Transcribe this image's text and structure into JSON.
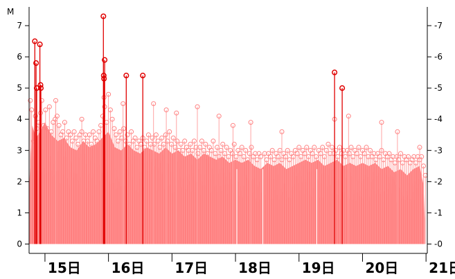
{
  "chart_data": {
    "type": "bar",
    "title": "",
    "y_unit_label": "M",
    "ylim": [
      -0.3,
      7.6
    ],
    "y_ticks": [
      0,
      1,
      2,
      3,
      4,
      5,
      6,
      7
    ],
    "y_tick_labels": [
      "0",
      "1",
      "2",
      "3",
      "4",
      "5",
      "6",
      "7"
    ],
    "xlim": [
      14.75,
      21.02
    ],
    "x_ticks": [
      {
        "value": 15,
        "label": "15日"
      },
      {
        "value": 16,
        "label": "16日"
      },
      {
        "value": 17,
        "label": "17日"
      },
      {
        "value": 18,
        "label": "18日"
      },
      {
        "value": 19,
        "label": "19日"
      },
      {
        "value": 20,
        "label": "20日"
      },
      {
        "value": 21,
        "label": "21日"
      }
    ],
    "colors": {
      "bulk_fill": "#ff8080",
      "minor_stem": "#ff9a9a",
      "minor_marker": "#ff8080",
      "major_stem": "#e00000",
      "major_marker": "#e00000"
    },
    "bulk_envelope": [
      [
        14.75,
        1.8
      ],
      [
        14.8,
        3.8
      ],
      [
        14.86,
        3.4
      ],
      [
        14.92,
        3.6
      ],
      [
        15.0,
        3.9
      ],
      [
        15.1,
        3.5
      ],
      [
        15.2,
        3.3
      ],
      [
        15.3,
        3.4
      ],
      [
        15.4,
        3.1
      ],
      [
        15.5,
        3.0
      ],
      [
        15.6,
        3.3
      ],
      [
        15.7,
        3.1
      ],
      [
        15.8,
        3.2
      ],
      [
        15.9,
        3.4
      ],
      [
        16.0,
        3.6
      ],
      [
        16.1,
        3.1
      ],
      [
        16.2,
        3.0
      ],
      [
        16.3,
        3.2
      ],
      [
        16.4,
        3.0
      ],
      [
        16.5,
        2.9
      ],
      [
        16.6,
        3.1
      ],
      [
        16.7,
        3.0
      ],
      [
        16.8,
        2.9
      ],
      [
        16.9,
        3.1
      ],
      [
        17.0,
        2.9
      ],
      [
        17.1,
        3.0
      ],
      [
        17.2,
        2.8
      ],
      [
        17.3,
        2.9
      ],
      [
        17.4,
        2.7
      ],
      [
        17.5,
        2.9
      ],
      [
        17.6,
        2.8
      ],
      [
        17.7,
        2.7
      ],
      [
        17.8,
        2.8
      ],
      [
        17.9,
        2.6
      ],
      [
        18.0,
        2.7
      ],
      [
        18.1,
        2.6
      ],
      [
        18.2,
        2.7
      ],
      [
        18.3,
        2.5
      ],
      [
        18.4,
        2.4
      ],
      [
        18.5,
        2.6
      ],
      [
        18.6,
        2.5
      ],
      [
        18.7,
        2.6
      ],
      [
        18.8,
        2.4
      ],
      [
        18.9,
        2.5
      ],
      [
        19.0,
        2.6
      ],
      [
        19.1,
        2.7
      ],
      [
        19.2,
        2.6
      ],
      [
        19.3,
        2.7
      ],
      [
        19.4,
        2.5
      ],
      [
        19.5,
        2.6
      ],
      [
        19.6,
        2.7
      ],
      [
        19.7,
        2.5
      ],
      [
        19.8,
        2.6
      ],
      [
        19.9,
        2.5
      ],
      [
        20.0,
        2.6
      ],
      [
        20.1,
        2.5
      ],
      [
        20.2,
        2.6
      ],
      [
        20.3,
        2.4
      ],
      [
        20.4,
        2.5
      ],
      [
        20.5,
        2.3
      ],
      [
        20.6,
        2.4
      ],
      [
        20.7,
        2.2
      ],
      [
        20.8,
        2.4
      ],
      [
        20.9,
        2.5
      ],
      [
        20.96,
        1.9
      ],
      [
        20.98,
        0.8
      ]
    ],
    "bulk_gaps": [
      18.02,
      18.43,
      19.28
    ],
    "minor_events": [
      [
        14.77,
        4.6
      ],
      [
        14.79,
        4.3
      ],
      [
        14.82,
        3.3
      ],
      [
        14.85,
        4.1
      ],
      [
        14.87,
        3.7
      ],
      [
        14.9,
        3.9
      ],
      [
        14.93,
        4.2
      ],
      [
        14.95,
        4.6
      ],
      [
        14.98,
        3.8
      ],
      [
        15.01,
        4.3
      ],
      [
        15.04,
        3.7
      ],
      [
        15.07,
        4.4
      ],
      [
        15.1,
        3.6
      ],
      [
        15.13,
        3.9
      ],
      [
        15.16,
        4.0
      ],
      [
        15.19,
        4.1
      ],
      [
        15.22,
        3.8
      ],
      [
        15.25,
        3.5
      ],
      [
        15.28,
        3.6
      ],
      [
        15.31,
        3.9
      ],
      [
        15.34,
        3.4
      ],
      [
        15.37,
        3.6
      ],
      [
        15.4,
        3.5
      ],
      [
        15.43,
        3.3
      ],
      [
        15.46,
        3.6
      ],
      [
        15.49,
        3.4
      ],
      [
        15.52,
        3.2
      ],
      [
        15.55,
        3.5
      ],
      [
        15.58,
        3.6
      ],
      [
        15.61,
        3.3
      ],
      [
        15.64,
        3.5
      ],
      [
        15.67,
        3.3
      ],
      [
        15.7,
        3.5
      ],
      [
        15.73,
        3.2
      ],
      [
        15.76,
        3.6
      ],
      [
        15.79,
        3.4
      ],
      [
        15.82,
        3.3
      ],
      [
        15.85,
        3.6
      ],
      [
        15.88,
        3.8
      ],
      [
        15.91,
        4.1
      ],
      [
        15.94,
        4.4
      ],
      [
        15.97,
        3.9
      ],
      [
        16.0,
        4.8
      ],
      [
        16.03,
        4.3
      ],
      [
        16.06,
        4.0
      ],
      [
        16.09,
        3.7
      ],
      [
        16.12,
        3.5
      ],
      [
        16.15,
        3.3
      ],
      [
        16.18,
        3.6
      ],
      [
        16.21,
        3.4
      ],
      [
        16.24,
        3.7
      ],
      [
        16.27,
        3.3
      ],
      [
        16.3,
        3.5
      ],
      [
        16.33,
        3.2
      ],
      [
        16.36,
        3.6
      ],
      [
        16.39,
        3.3
      ],
      [
        16.42,
        3.4
      ],
      [
        16.45,
        3.1
      ],
      [
        16.48,
        3.3
      ],
      [
        16.51,
        3.2
      ],
      [
        16.54,
        3.4
      ],
      [
        16.57,
        3.1
      ],
      [
        16.6,
        3.3
      ],
      [
        16.63,
        3.5
      ],
      [
        16.66,
        3.2
      ],
      [
        16.69,
        3.4
      ],
      [
        16.72,
        3.2
      ],
      [
        16.75,
        3.5
      ],
      [
        16.78,
        3.3
      ],
      [
        16.81,
        3.1
      ],
      [
        16.84,
        3.4
      ],
      [
        16.87,
        3.2
      ],
      [
        16.9,
        3.5
      ],
      [
        16.93,
        3.3
      ],
      [
        16.96,
        3.6
      ],
      [
        16.99,
        3.2
      ],
      [
        17.02,
        3.4
      ],
      [
        17.05,
        3.1
      ],
      [
        17.08,
        3.3
      ],
      [
        17.11,
        3.0
      ],
      [
        17.14,
        3.2
      ],
      [
        17.17,
        3.0
      ],
      [
        17.2,
        3.3
      ],
      [
        17.23,
        3.1
      ],
      [
        17.26,
        3.0
      ],
      [
        17.29,
        3.2
      ],
      [
        17.32,
        3.0
      ],
      [
        17.35,
        3.3
      ],
      [
        17.38,
        3.1
      ],
      [
        17.41,
        2.9
      ],
      [
        17.44,
        3.1
      ],
      [
        17.47,
        3.3
      ],
      [
        17.5,
        3.0
      ],
      [
        17.53,
        3.2
      ],
      [
        17.56,
        2.9
      ],
      [
        17.59,
        3.1
      ],
      [
        17.62,
        3.0
      ],
      [
        17.65,
        3.3
      ],
      [
        17.68,
        2.9
      ],
      [
        17.71,
        3.1
      ],
      [
        17.74,
        2.8
      ],
      [
        17.77,
        3.0
      ],
      [
        17.8,
        3.2
      ],
      [
        17.83,
        2.9
      ],
      [
        17.86,
        3.1
      ],
      [
        17.89,
        2.8
      ],
      [
        17.92,
        3.0
      ],
      [
        17.95,
        2.9
      ],
      [
        17.98,
        3.2
      ],
      [
        18.01,
        2.8
      ],
      [
        18.04,
        3.0
      ],
      [
        18.07,
        2.9
      ],
      [
        18.1,
        3.1
      ],
      [
        18.13,
        2.8
      ],
      [
        18.16,
        3.0
      ],
      [
        18.19,
        2.7
      ],
      [
        18.22,
        2.9
      ],
      [
        18.25,
        3.1
      ],
      [
        18.28,
        2.8
      ],
      [
        18.31,
        2.9
      ],
      [
        18.34,
        2.7
      ],
      [
        18.37,
        2.9
      ],
      [
        18.4,
        2.8
      ],
      [
        18.46,
        2.9
      ],
      [
        18.49,
        2.7
      ],
      [
        18.52,
        2.9
      ],
      [
        18.55,
        2.8
      ],
      [
        18.58,
        3.0
      ],
      [
        18.61,
        2.7
      ],
      [
        18.64,
        2.9
      ],
      [
        18.67,
        2.8
      ],
      [
        18.7,
        3.0
      ],
      [
        18.73,
        2.7
      ],
      [
        18.76,
        2.9
      ],
      [
        18.79,
        2.8
      ],
      [
        18.82,
        3.0
      ],
      [
        18.85,
        2.7
      ],
      [
        18.88,
        2.9
      ],
      [
        18.91,
        2.8
      ],
      [
        18.94,
        3.0
      ],
      [
        18.97,
        2.9
      ],
      [
        19.0,
        3.1
      ],
      [
        19.03,
        2.8
      ],
      [
        19.06,
        3.0
      ],
      [
        19.09,
        2.9
      ],
      [
        19.12,
        3.1
      ],
      [
        19.15,
        2.8
      ],
      [
        19.18,
        3.0
      ],
      [
        19.21,
        2.9
      ],
      [
        19.24,
        3.1
      ],
      [
        19.27,
        2.8
      ],
      [
        19.31,
        3.0
      ],
      [
        19.34,
        2.9
      ],
      [
        19.37,
        3.1
      ],
      [
        19.4,
        2.8
      ],
      [
        19.43,
        3.0
      ],
      [
        19.46,
        3.2
      ],
      [
        19.49,
        2.9
      ],
      [
        19.52,
        3.1
      ],
      [
        19.55,
        2.9
      ],
      [
        19.58,
        3.0
      ],
      [
        19.61,
        2.8
      ],
      [
        19.64,
        3.1
      ],
      [
        19.67,
        2.9
      ],
      [
        19.7,
        3.0
      ],
      [
        19.73,
        2.8
      ],
      [
        19.76,
        3.0
      ],
      [
        19.79,
        2.9
      ],
      [
        19.82,
        3.1
      ],
      [
        19.85,
        2.8
      ],
      [
        19.88,
        3.0
      ],
      [
        19.91,
        2.9
      ],
      [
        19.94,
        3.1
      ],
      [
        19.97,
        2.8
      ],
      [
        20.0,
        3.0
      ],
      [
        20.03,
        2.9
      ],
      [
        20.06,
        3.1
      ],
      [
        20.09,
        2.8
      ],
      [
        20.12,
        3.0
      ],
      [
        20.15,
        2.8
      ],
      [
        20.18,
        2.9
      ],
      [
        20.21,
        2.7
      ],
      [
        20.24,
        2.9
      ],
      [
        20.27,
        2.8
      ],
      [
        20.3,
        3.0
      ],
      [
        20.33,
        2.7
      ],
      [
        20.36,
        2.9
      ],
      [
        20.39,
        2.8
      ],
      [
        20.42,
        2.9
      ],
      [
        20.45,
        2.7
      ],
      [
        20.48,
        2.8
      ],
      [
        20.51,
        2.6
      ],
      [
        20.54,
        2.8
      ],
      [
        20.57,
        2.7
      ],
      [
        20.6,
        2.9
      ],
      [
        20.63,
        2.6
      ],
      [
        20.66,
        2.8
      ],
      [
        20.69,
        2.7
      ],
      [
        20.72,
        2.8
      ],
      [
        20.75,
        2.6
      ],
      [
        20.78,
        2.7
      ],
      [
        20.81,
        2.8
      ],
      [
        20.84,
        2.6
      ],
      [
        20.87,
        2.8
      ],
      [
        20.9,
        2.7
      ],
      [
        20.93,
        2.8
      ],
      [
        20.96,
        2.5
      ],
      [
        20.99,
        2.2
      ]
    ],
    "minor_peaks": [
      [
        15.17,
        4.6
      ],
      [
        15.58,
        4.0
      ],
      [
        15.93,
        4.7
      ],
      [
        16.23,
        4.5
      ],
      [
        16.71,
        4.5
      ],
      [
        16.91,
        4.3
      ],
      [
        17.07,
        4.2
      ],
      [
        17.4,
        4.4
      ],
      [
        17.74,
        4.1
      ],
      [
        17.96,
        3.8
      ],
      [
        18.24,
        3.9
      ],
      [
        18.73,
        3.6
      ],
      [
        19.56,
        4.0
      ],
      [
        19.78,
        4.1
      ],
      [
        20.3,
        3.9
      ],
      [
        20.55,
        3.6
      ],
      [
        20.9,
        3.1
      ]
    ],
    "major_events": [
      [
        14.84,
        6.5
      ],
      [
        14.86,
        5.8
      ],
      [
        14.87,
        5.0
      ],
      [
        14.92,
        6.4
      ],
      [
        14.93,
        5.1
      ],
      [
        14.935,
        5.0
      ],
      [
        15.92,
        7.3
      ],
      [
        15.925,
        5.4
      ],
      [
        15.93,
        5.3
      ],
      [
        15.94,
        5.9
      ],
      [
        16.28,
        5.4
      ],
      [
        16.54,
        5.4
      ],
      [
        19.56,
        5.5
      ],
      [
        19.68,
        5.0
      ]
    ]
  }
}
